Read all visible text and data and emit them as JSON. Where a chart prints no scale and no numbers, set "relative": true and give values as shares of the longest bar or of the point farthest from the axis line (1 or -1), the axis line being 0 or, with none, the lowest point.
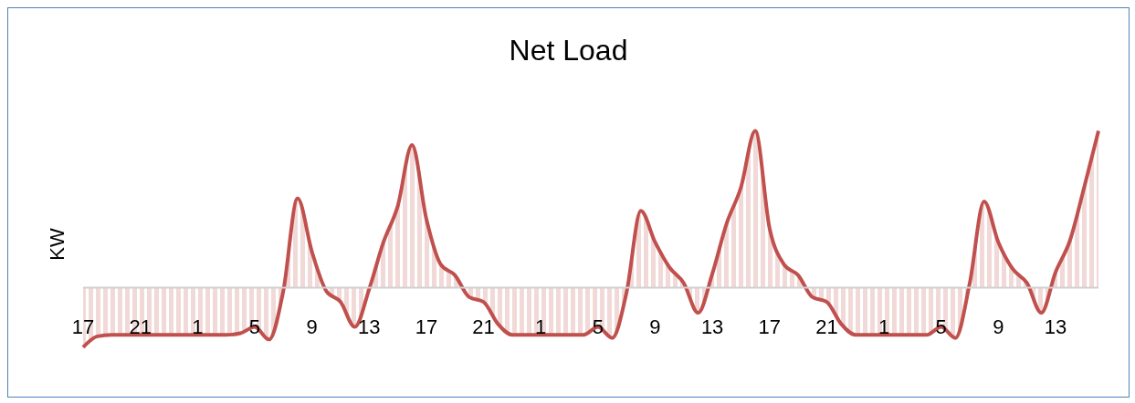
{
  "chart_data": {
    "type": "area",
    "title": "Net Load",
    "ylabel": "KW",
    "relative": true,
    "categories": [
      "17",
      null,
      null,
      null,
      "21",
      null,
      null,
      null,
      "1",
      null,
      null,
      null,
      "5",
      null,
      null,
      null,
      "9",
      null,
      null,
      null,
      "13",
      null,
      null,
      null,
      "17",
      null,
      null,
      null,
      "21",
      null,
      null,
      null,
      "1",
      null,
      null,
      null,
      "5",
      null,
      null,
      null,
      "9",
      null,
      null,
      null,
      "13",
      null,
      null,
      null,
      "17",
      null,
      null,
      null,
      "21",
      null,
      null,
      null,
      "1",
      null,
      null,
      null,
      "5",
      null,
      null,
      null,
      "9",
      null,
      null,
      null,
      "13",
      null,
      null,
      null
    ],
    "series": [
      {
        "color": "#c0504d",
        "values": [
          -0.38,
          -0.31,
          -0.3,
          -0.3,
          -0.3,
          -0.3,
          -0.3,
          -0.3,
          -0.3,
          -0.3,
          -0.3,
          -0.29,
          -0.25,
          -0.33,
          -0.02,
          0.57,
          0.23,
          -0.02,
          -0.09,
          -0.25,
          -0.01,
          0.29,
          0.52,
          0.91,
          0.44,
          0.15,
          0.08,
          -0.06,
          -0.09,
          -0.23,
          -0.3,
          -0.3,
          -0.3,
          -0.3,
          -0.3,
          -0.3,
          -0.25,
          -0.32,
          -0.03,
          0.49,
          0.29,
          0.13,
          0.03,
          -0.16,
          0.09,
          0.41,
          0.64,
          1,
          0.38,
          0.15,
          0.08,
          -0.06,
          -0.09,
          -0.23,
          -0.3,
          -0.3,
          -0.3,
          -0.3,
          -0.3,
          -0.3,
          -0.25,
          -0.32,
          0.03,
          0.55,
          0.29,
          0.12,
          0.03,
          -0.16,
          0.1,
          0.3,
          0.64,
          1
        ]
      }
    ]
  }
}
